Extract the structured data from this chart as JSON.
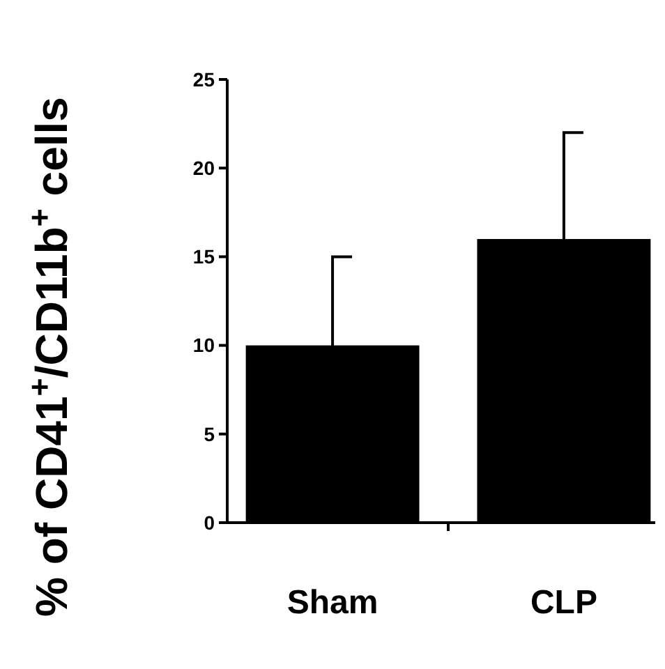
{
  "chart_data": {
    "type": "bar",
    "ylabel": "% of CD41$^{+}$/CD11b$^{+}$ cells",
    "categories": [
      "Sham",
      "CLP"
    ],
    "values": [
      10,
      16
    ],
    "errors": [
      5,
      6
    ],
    "color": "#000000",
    "ylim": [
      0,
      25
    ],
    "yticks": [
      0,
      5,
      10,
      15,
      20,
      25
    ],
    "grid": false
  }
}
